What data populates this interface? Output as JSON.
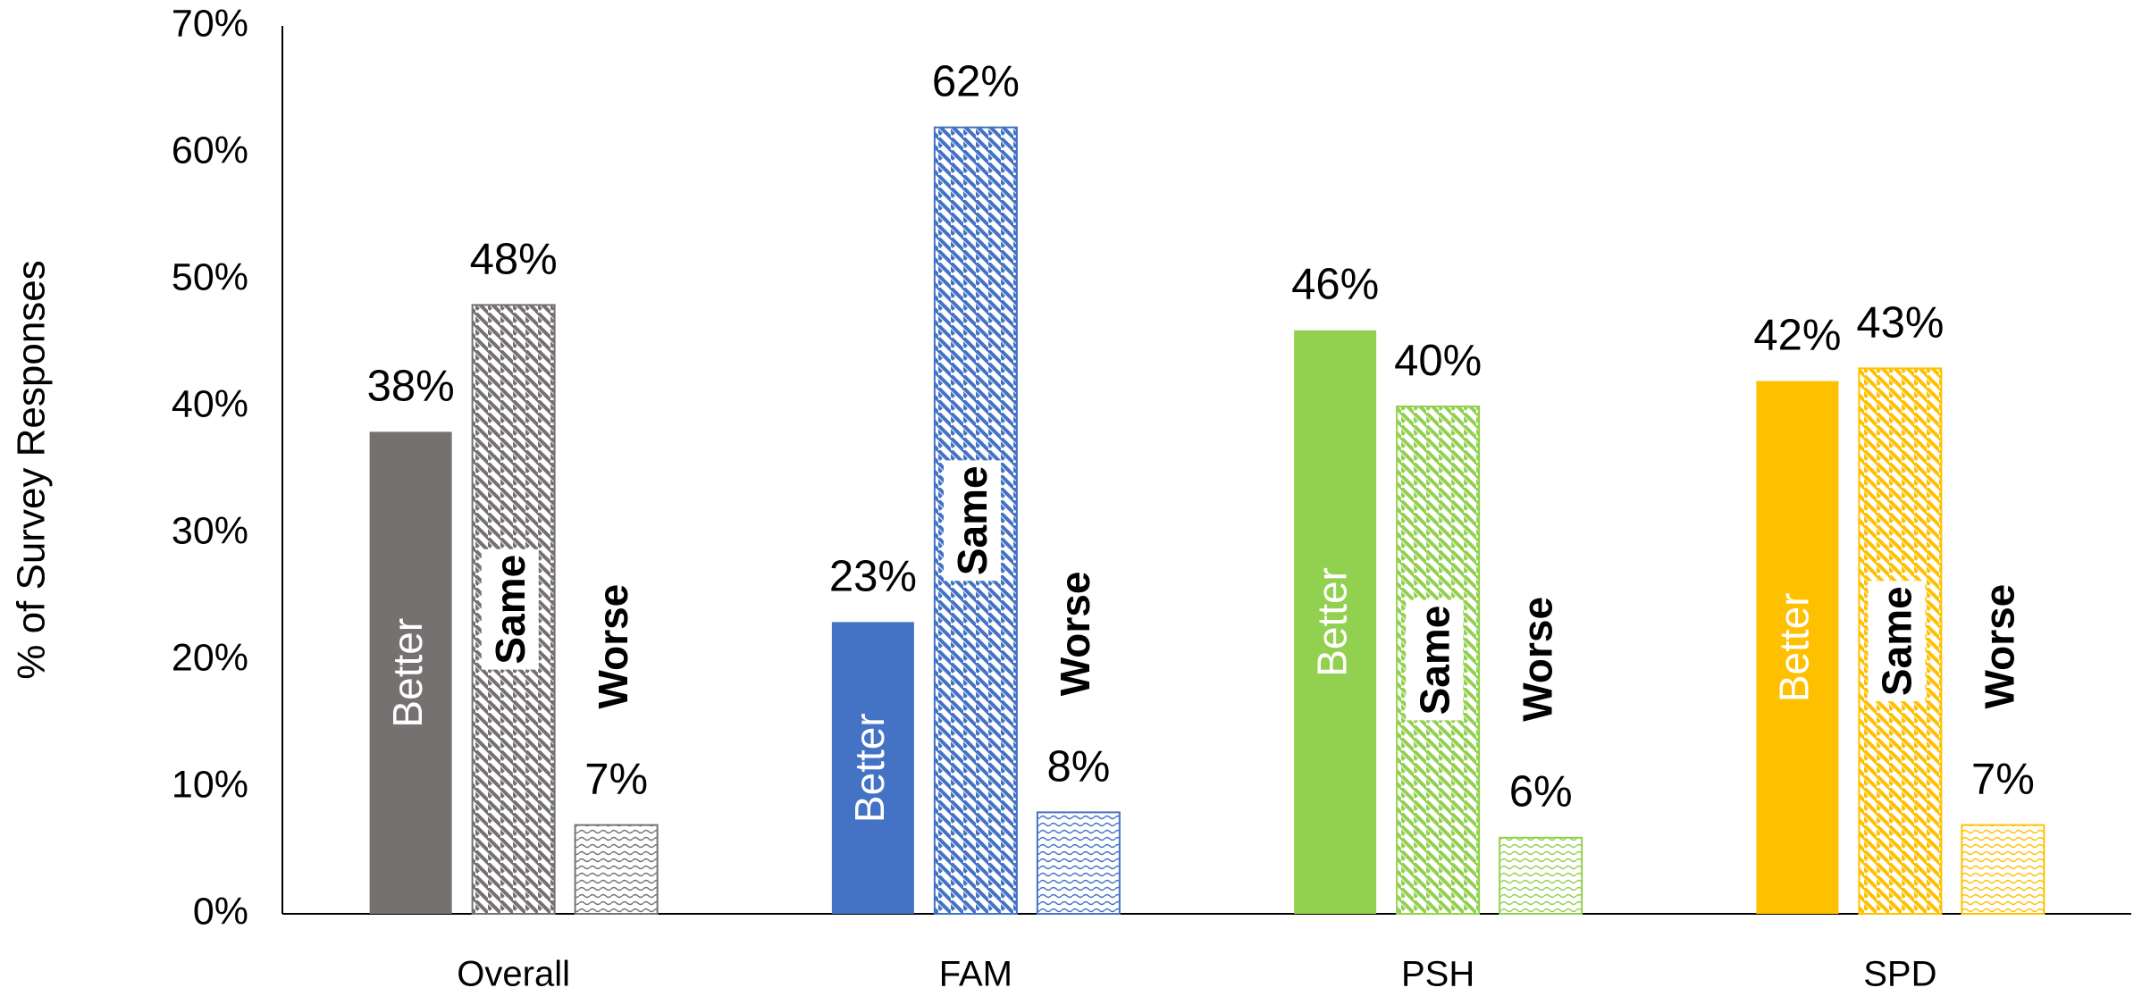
{
  "chart_data": {
    "type": "bar",
    "y_label": "% of Survey Responses",
    "categories": [
      "Overall",
      "FAM",
      "PSH",
      "SPD"
    ],
    "colors": [
      "#767171",
      "#4472c4",
      "#92d050",
      "#ffc000"
    ],
    "series": [
      {
        "name": "Better",
        "pattern": "solid",
        "values": [
          38,
          23,
          46,
          42
        ],
        "value_labels": [
          "38%",
          "23%",
          "46%",
          "42%"
        ]
      },
      {
        "name": "Same",
        "pattern": "diagonal",
        "values": [
          48,
          62,
          40,
          43
        ],
        "value_labels": [
          "48%",
          "62%",
          "40%",
          "43%"
        ]
      },
      {
        "name": "Worse",
        "pattern": "wave",
        "values": [
          7,
          8,
          6,
          7
        ],
        "value_labels": [
          "7%",
          "8%",
          "6%",
          "7%"
        ]
      }
    ],
    "ylim": [
      0,
      70
    ],
    "yticks": [
      {
        "value": 0,
        "label": "0%"
      },
      {
        "value": 10,
        "label": "10%"
      },
      {
        "value": 20,
        "label": "20%"
      },
      {
        "value": 30,
        "label": "30%"
      },
      {
        "value": 40,
        "label": "40%"
      },
      {
        "value": 50,
        "label": "50%"
      },
      {
        "value": 60,
        "label": "60%"
      },
      {
        "value": 70,
        "label": "70%"
      }
    ],
    "grid": false
  }
}
